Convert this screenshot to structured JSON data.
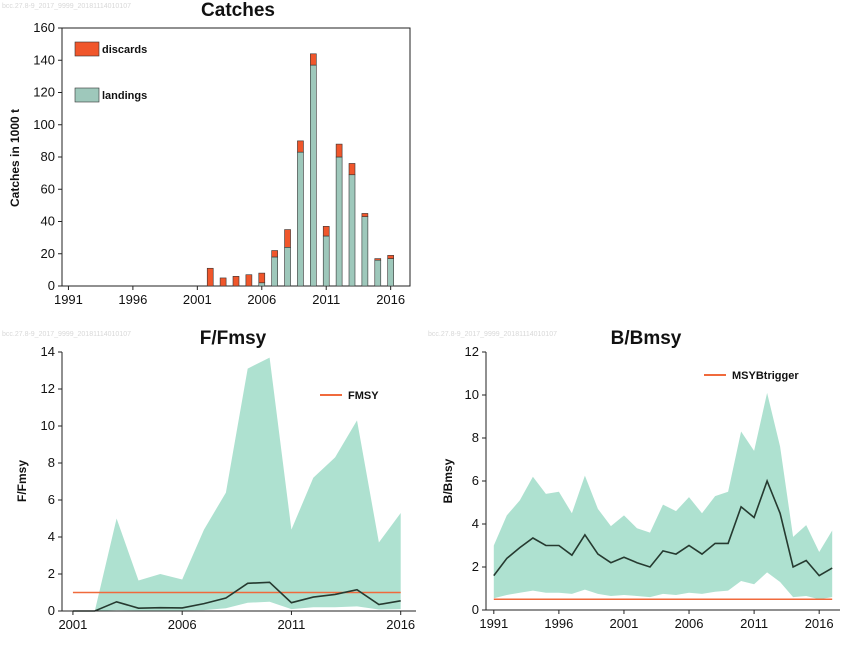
{
  "watermark": "bcc.27.8-9_2017_9999_20181114010107",
  "colors": {
    "discards": "#f0562b",
    "landings": "#9ec8bb",
    "band": "#aee1d0",
    "line": "#263a30",
    "ref": "#f06a3c"
  },
  "chart_data": [
    {
      "type": "bar",
      "title": "Catches",
      "ylabel": "Catches in 1000 t",
      "ylim": [
        0,
        160
      ],
      "yticks": [
        "0",
        "20",
        "40",
        "60",
        "80",
        "100",
        "120",
        "140",
        "160"
      ],
      "xticks": [
        "1991",
        "1996",
        "2001",
        "2006",
        "2011",
        "2016"
      ],
      "xlim": [
        1990.5,
        2017.5
      ],
      "legend": {
        "position": "top-left",
        "entries": [
          "discards",
          "landings"
        ]
      },
      "categories": [
        2002,
        2003,
        2004,
        2005,
        2006,
        2007,
        2008,
        2009,
        2010,
        2011,
        2012,
        2013,
        2014,
        2015,
        2016
      ],
      "series": [
        {
          "name": "landings",
          "values": [
            0,
            0,
            0,
            0,
            2,
            18,
            24,
            83,
            137,
            31,
            80,
            69,
            43,
            16,
            17
          ]
        },
        {
          "name": "discards",
          "values": [
            11,
            5,
            6,
            7,
            6,
            4,
            11,
            7,
            7,
            6,
            8,
            7,
            2,
            1,
            2
          ]
        }
      ]
    },
    {
      "type": "line",
      "title": "F/Fmsy",
      "ylabel": "F/Fmsy",
      "ylim": [
        0,
        14
      ],
      "yticks": [
        "0",
        "2",
        "4",
        "6",
        "8",
        "10",
        "12",
        "14"
      ],
      "xticks": [
        "2001",
        "2006",
        "2011",
        "2016"
      ],
      "xlim": [
        2000.5,
        2016.7
      ],
      "legend": {
        "position": "top-right",
        "entries": [
          "FMSY"
        ]
      },
      "reference": {
        "name": "FMSY",
        "value": 1.0
      },
      "x": [
        2001,
        2002,
        2003,
        2004,
        2005,
        2006,
        2007,
        2008,
        2009,
        2010,
        2011,
        2012,
        2013,
        2014,
        2015,
        2016
      ],
      "values": [
        0,
        0,
        0.5,
        0.15,
        0.18,
        0.17,
        0.4,
        0.7,
        1.5,
        1.55,
        0.45,
        0.75,
        0.9,
        1.15,
        0.35,
        0.55
      ],
      "upper": [
        0,
        0,
        5.0,
        1.65,
        2.0,
        1.7,
        4.4,
        6.4,
        13.1,
        13.7,
        4.4,
        7.2,
        8.3,
        10.3,
        3.7,
        5.3
      ],
      "lower": [
        0,
        0,
        0.05,
        0.03,
        0.03,
        0.03,
        0.05,
        0.15,
        0.45,
        0.5,
        0.1,
        0.2,
        0.2,
        0.25,
        0.08,
        0.1
      ]
    },
    {
      "type": "line",
      "title": "B/Bmsy",
      "ylabel": "B/Bmsy",
      "ylim": [
        0,
        12
      ],
      "yticks": [
        "0",
        "2",
        "4",
        "6",
        "8",
        "10",
        "12"
      ],
      "xticks": [
        "1991",
        "1996",
        "2001",
        "2006",
        "2011",
        "2016"
      ],
      "xlim": [
        1990.4,
        2017.6
      ],
      "legend": {
        "position": "top-right",
        "entries": [
          "MSYBtrigger"
        ]
      },
      "reference": {
        "name": "MSYBtrigger",
        "value": 0.5
      },
      "x": [
        1991,
        1992,
        1993,
        1994,
        1995,
        1996,
        1997,
        1998,
        1999,
        2000,
        2001,
        2002,
        2003,
        2004,
        2005,
        2006,
        2007,
        2008,
        2009,
        2010,
        2011,
        2012,
        2013,
        2014,
        2015,
        2016,
        2017
      ],
      "values": [
        1.6,
        2.4,
        2.9,
        3.35,
        3.0,
        3.0,
        2.55,
        3.5,
        2.6,
        2.2,
        2.45,
        2.2,
        2.0,
        2.75,
        2.6,
        3.0,
        2.6,
        3.1,
        3.1,
        4.8,
        4.3,
        6.0,
        4.5,
        2.0,
        2.3,
        1.6,
        1.95
      ],
      "upper": [
        3.0,
        4.4,
        5.1,
        6.2,
        5.4,
        5.5,
        4.5,
        6.25,
        4.7,
        3.9,
        4.4,
        3.8,
        3.6,
        4.9,
        4.6,
        5.25,
        4.5,
        5.3,
        5.5,
        8.3,
        7.4,
        10.1,
        7.6,
        3.4,
        3.95,
        2.7,
        3.7
      ],
      "lower": [
        0.55,
        0.7,
        0.8,
        0.9,
        0.8,
        0.8,
        0.75,
        0.95,
        0.75,
        0.65,
        0.7,
        0.65,
        0.6,
        0.75,
        0.7,
        0.8,
        0.75,
        0.85,
        0.9,
        1.35,
        1.2,
        1.75,
        1.3,
        0.6,
        0.65,
        0.5,
        0.6
      ]
    }
  ]
}
